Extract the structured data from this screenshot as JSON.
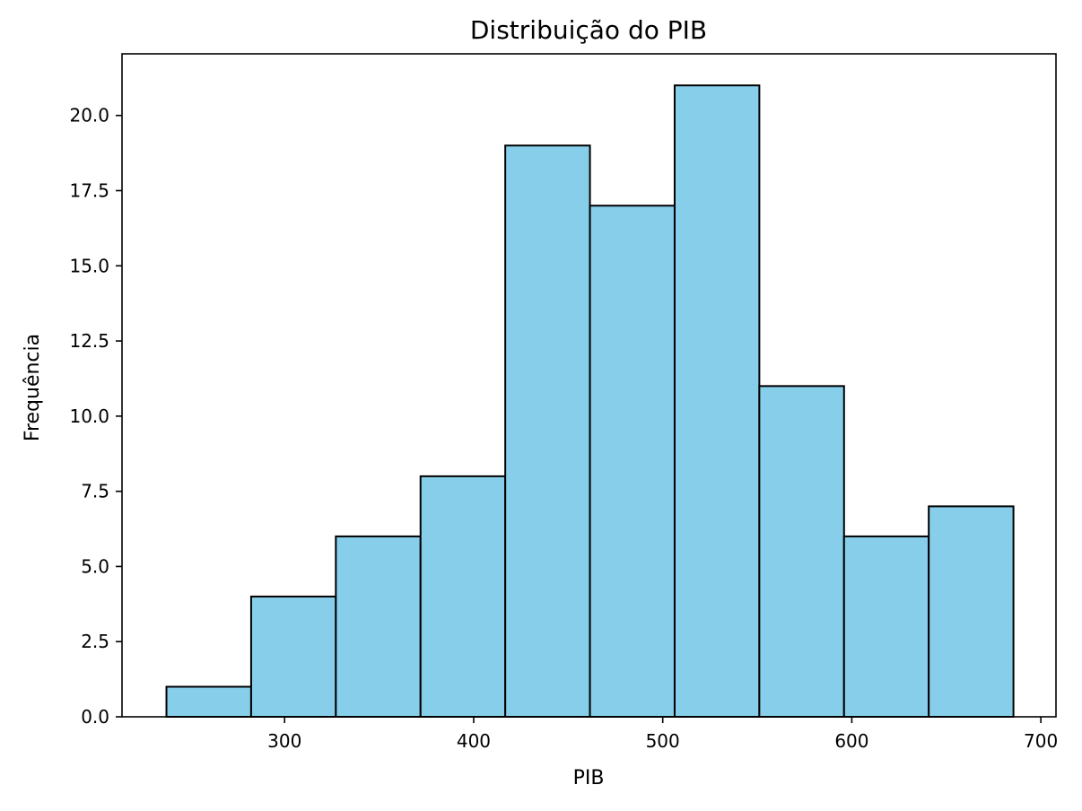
{
  "chart_data": {
    "type": "histogram",
    "title": "Distribuição do PIB",
    "xlabel": "PIB",
    "ylabel": "Frequência",
    "xlim": [
      214,
      708
    ],
    "ylim": [
      0,
      22.05
    ],
    "x_ticks": [
      300,
      400,
      500,
      600,
      700
    ],
    "x_tick_labels": [
      "300",
      "400",
      "500",
      "600",
      "700"
    ],
    "y_ticks": [
      0,
      2.5,
      5,
      7.5,
      10,
      12.5,
      15,
      17.5,
      20
    ],
    "y_tick_labels": [
      "0.0",
      "2.5",
      "5.0",
      "7.5",
      "10.0",
      "12.5",
      "15.0",
      "17.5",
      "20.0"
    ],
    "bin_edges": [
      237.5,
      282.3,
      327.1,
      371.9,
      416.7,
      461.5,
      506.3,
      551.1,
      595.9,
      640.7,
      685.5
    ],
    "values": [
      1,
      4,
      6,
      8,
      19,
      17,
      21,
      11,
      6,
      7
    ],
    "bar_color": "#87ceeb",
    "edge_color": "#000000",
    "grid": false,
    "legend": "none"
  }
}
